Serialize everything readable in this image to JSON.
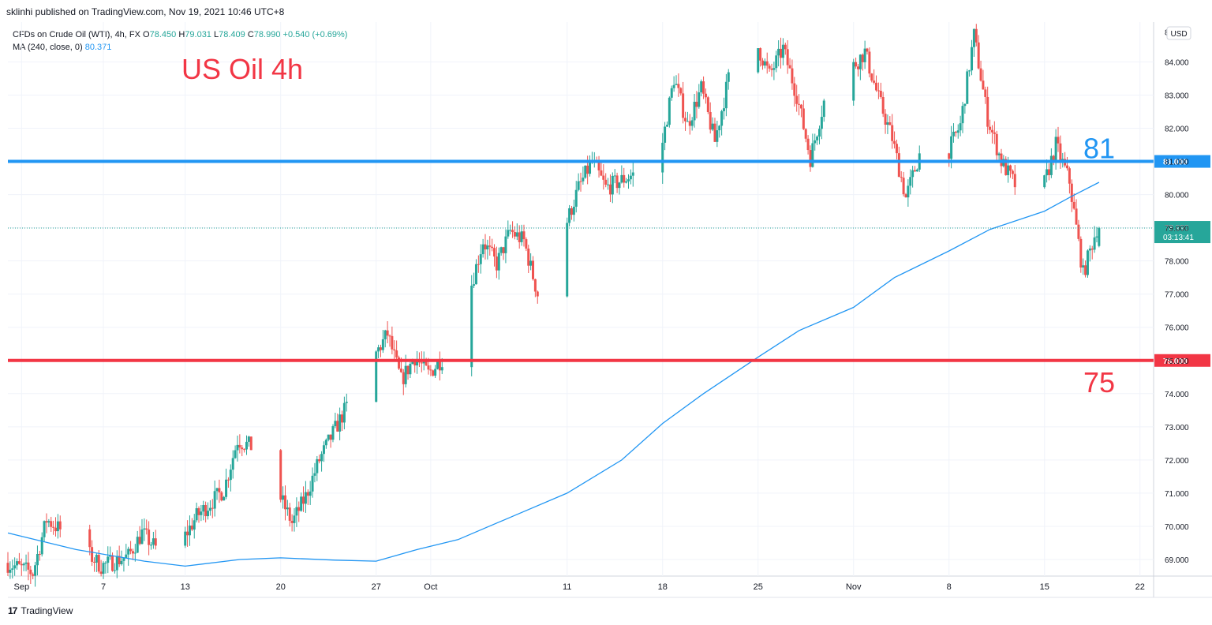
{
  "header": {
    "publish_line": "sklinhi published on TradingView.com, Nov 19, 2021 10:46 UTC+8"
  },
  "legend": {
    "symbol": "CFDs on Crude Oil (WTI), 4h, FX",
    "o_label": "O",
    "o_value": "78.450",
    "h_label": "H",
    "h_value": "79.031",
    "l_label": "L",
    "l_value": "78.409",
    "c_label": "C",
    "c_value": "78.990",
    "change": "+0.540 (+0.69%)",
    "ma_label": "MA (240, close, 0)",
    "ma_value": "80.371"
  },
  "footer": {
    "brand": "TradingView"
  },
  "colors": {
    "up": "#26a69a",
    "down": "#ef5350",
    "ma": "#2196f3",
    "resistance": "#2196f3",
    "support": "#f23645",
    "grid": "#f0f3fa"
  },
  "chart_data": {
    "type": "candlestick",
    "title": "US Oil 4h",
    "currency": "USD",
    "y_range": [
      68.5,
      85.2
    ],
    "y_ticks": [
      "69.000",
      "70.000",
      "71.000",
      "72.000",
      "73.000",
      "74.000",
      "75.000",
      "76.000",
      "77.000",
      "78.000",
      "79.000",
      "80.000",
      "81.000",
      "82.000",
      "83.000",
      "84.000"
    ],
    "y_tick_values": [
      69,
      70,
      71,
      72,
      73,
      74,
      75,
      76,
      77,
      78,
      79,
      80,
      81,
      82,
      83,
      84
    ],
    "top_tick_partial": "8",
    "x_range": [
      "2021-08-31",
      "2021-11-23"
    ],
    "x_ticks": [
      {
        "label": "Sep",
        "date": "2021-09-01"
      },
      {
        "label": "7",
        "date": "2021-09-07"
      },
      {
        "label": "13",
        "date": "2021-09-13"
      },
      {
        "label": "20",
        "date": "2021-09-20"
      },
      {
        "label": "27",
        "date": "2021-09-27"
      },
      {
        "label": "Oct",
        "date": "2021-10-01"
      },
      {
        "label": "11",
        "date": "2021-10-11"
      },
      {
        "label": "18",
        "date": "2021-10-18"
      },
      {
        "label": "25",
        "date": "2021-10-25"
      },
      {
        "label": "Nov",
        "date": "2021-11-01"
      },
      {
        "label": "8",
        "date": "2021-11-08"
      },
      {
        "label": "15",
        "date": "2021-11-15"
      },
      {
        "label": "22",
        "date": "2021-11-22"
      }
    ],
    "price_path": [
      [
        "2021-08-31",
        68.9
      ],
      [
        "2021-09-02",
        68.6
      ],
      [
        "2021-09-03",
        70.2
      ],
      [
        "2021-09-05",
        69.6
      ],
      [
        "2021-09-07",
        68.8
      ],
      [
        "2021-09-09",
        69.1
      ],
      [
        "2021-09-10",
        69.8
      ],
      [
        "2021-09-12",
        68.9
      ],
      [
        "2021-09-14",
        70.3
      ],
      [
        "2021-09-16",
        71.1
      ],
      [
        "2021-09-17",
        72.6
      ],
      [
        "2021-09-18",
        72.4
      ],
      [
        "2021-09-20",
        71.0
      ],
      [
        "2021-09-21",
        70.1
      ],
      [
        "2021-09-22",
        70.9
      ],
      [
        "2021-09-23",
        72.0
      ],
      [
        "2021-09-25",
        73.6
      ],
      [
        "2021-09-26",
        74.3
      ],
      [
        "2021-09-27",
        75.1
      ],
      [
        "2021-09-28",
        75.8
      ],
      [
        "2021-09-29",
        74.4
      ],
      [
        "2021-09-30",
        75.1
      ],
      [
        "2021-10-01",
        74.6
      ],
      [
        "2021-10-03",
        75.5
      ],
      [
        "2021-10-05",
        78.6
      ],
      [
        "2021-10-06",
        77.9
      ],
      [
        "2021-10-07",
        78.9
      ],
      [
        "2021-10-08",
        78.6
      ],
      [
        "2021-10-09",
        77.0
      ],
      [
        "2021-10-10",
        75.2
      ],
      [
        "2021-10-11",
        79.0
      ],
      [
        "2021-10-12",
        80.2
      ],
      [
        "2021-10-13",
        81.0
      ],
      [
        "2021-10-14",
        80.2
      ],
      [
        "2021-10-16",
        80.6
      ],
      [
        "2021-10-18",
        81.2
      ],
      [
        "2021-10-19",
        83.5
      ],
      [
        "2021-10-20",
        82.1
      ],
      [
        "2021-10-21",
        83.2
      ],
      [
        "2021-10-22",
        81.6
      ],
      [
        "2021-10-23",
        83.5
      ],
      [
        "2021-10-24",
        82.0
      ],
      [
        "2021-10-25",
        84.6
      ],
      [
        "2021-10-26",
        83.6
      ],
      [
        "2021-10-27",
        84.4
      ],
      [
        "2021-10-28",
        83.0
      ],
      [
        "2021-10-29",
        81.1
      ],
      [
        "2021-10-30",
        82.8
      ],
      [
        "2021-11-01",
        83.8
      ],
      [
        "2021-11-02",
        84.3
      ],
      [
        "2021-11-03",
        82.9
      ],
      [
        "2021-11-04",
        81.7
      ],
      [
        "2021-11-05",
        79.9
      ],
      [
        "2021-11-06",
        81.2
      ],
      [
        "2021-11-07",
        79.4
      ],
      [
        "2021-11-08",
        81.2
      ],
      [
        "2021-11-09",
        82.1
      ],
      [
        "2021-11-10",
        84.8
      ],
      [
        "2021-11-11",
        82.3
      ],
      [
        "2021-11-12",
        81.0
      ],
      [
        "2021-11-13",
        80.3
      ],
      [
        "2021-11-14",
        80.6
      ],
      [
        "2021-11-15",
        80.1
      ],
      [
        "2021-11-16",
        81.5
      ],
      [
        "2021-11-17",
        80.4
      ],
      [
        "2021-11-18",
        77.6
      ],
      [
        "2021-11-19",
        78.99
      ]
    ],
    "ma_series": {
      "name": "MA (240, close, 0)",
      "points": [
        [
          "2021-08-31",
          69.8
        ],
        [
          "2021-09-05",
          69.3
        ],
        [
          "2021-09-10",
          68.95
        ],
        [
          "2021-09-13",
          68.8
        ],
        [
          "2021-09-17",
          69.0
        ],
        [
          "2021-09-20",
          69.05
        ],
        [
          "2021-09-24",
          68.98
        ],
        [
          "2021-09-27",
          68.95
        ],
        [
          "2021-09-30",
          69.3
        ],
        [
          "2021-10-03",
          69.6
        ],
        [
          "2021-10-07",
          70.3
        ],
        [
          "2021-10-11",
          71.0
        ],
        [
          "2021-10-15",
          72.0
        ],
        [
          "2021-10-18",
          73.1
        ],
        [
          "2021-10-21",
          74.0
        ],
        [
          "2021-10-25",
          75.1
        ],
        [
          "2021-10-28",
          75.9
        ],
        [
          "2021-11-01",
          76.6
        ],
        [
          "2021-11-04",
          77.5
        ],
        [
          "2021-11-08",
          78.3
        ],
        [
          "2021-11-11",
          78.95
        ],
        [
          "2021-11-15",
          79.5
        ],
        [
          "2021-11-17",
          79.95
        ],
        [
          "2021-11-19",
          80.371
        ]
      ]
    },
    "horizontal_levels": [
      {
        "label": "81",
        "value": 81.0,
        "price_label": "81.000",
        "color": "#2196f3"
      },
      {
        "label": "75",
        "value": 75.0,
        "price_label": "75.000",
        "color": "#f23645"
      }
    ],
    "last_price": {
      "value": 78.99,
      "label": "78.990",
      "countdown": "03:13:41"
    }
  }
}
